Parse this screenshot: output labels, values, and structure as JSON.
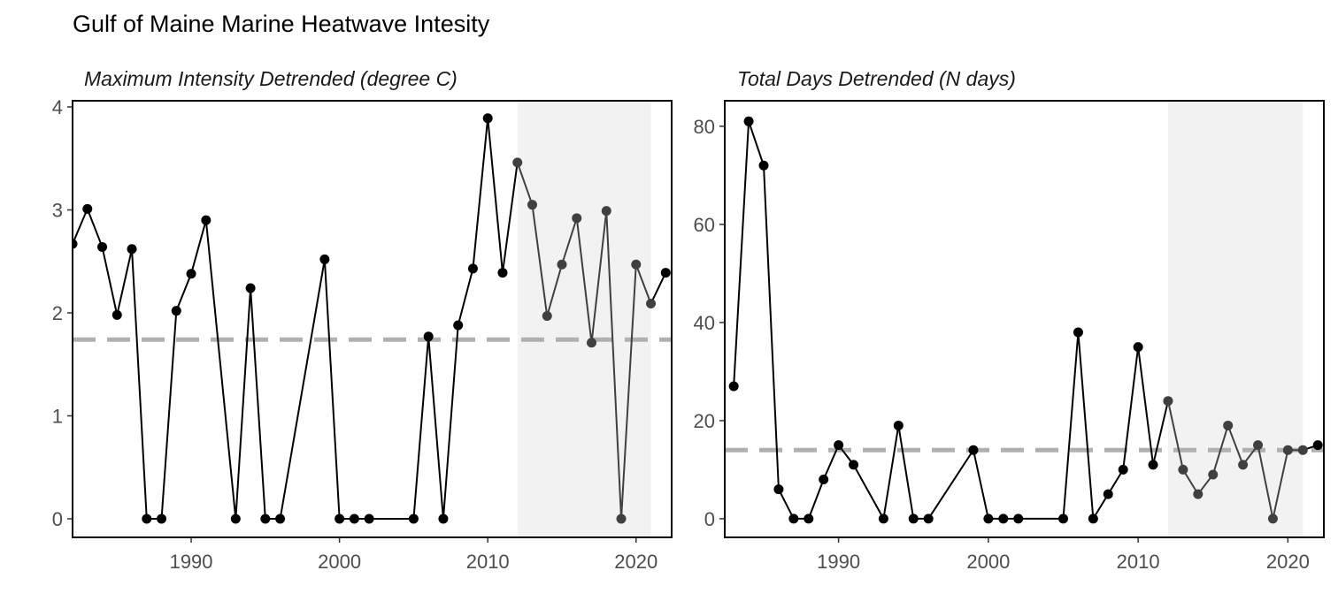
{
  "title": "Gulf of Maine Marine Heatwave Intesity",
  "colors": {
    "points": "#000000",
    "highlight_line": "#404040",
    "reference": "#b0b0b0",
    "shade": "#f2f2f2"
  },
  "chart_data": [
    {
      "type": "line",
      "title": "Maximum Intensity Detrended (degree C)",
      "xlabel": "",
      "ylabel": "",
      "xlim": [
        1982,
        2022.4
      ],
      "ylim": [
        -0.18,
        4.06
      ],
      "xticks": [
        "1990",
        "2000",
        "2010",
        "2020"
      ],
      "yticks": [
        "0",
        "1",
        "2",
        "3",
        "4"
      ],
      "reference_line": 1.74,
      "shaded_period": [
        2012,
        2021
      ],
      "grid": false,
      "series": [
        {
          "x": [
            1982,
            1983,
            1984,
            1985,
            1986,
            1987,
            1988,
            1989,
            1990,
            1991,
            1993,
            1994,
            1995,
            1996,
            1999,
            2000,
            2001,
            2002,
            2005,
            2006,
            2007,
            2008,
            2009,
            2010,
            2011,
            2012,
            2013,
            2014,
            2015,
            2016,
            2017,
            2018,
            2019,
            2020,
            2021,
            2022
          ],
          "y": [
            2.67,
            3.01,
            2.64,
            1.98,
            2.62,
            0,
            0,
            2.02,
            2.38,
            2.9,
            0,
            2.24,
            0,
            0,
            2.52,
            0,
            0,
            0,
            0,
            1.77,
            0,
            1.88,
            2.43,
            3.89,
            2.39,
            3.46,
            3.05,
            1.97,
            2.47,
            2.92,
            1.71,
            2.99,
            0,
            2.47,
            2.09,
            2.39
          ]
        }
      ]
    },
    {
      "type": "line",
      "title": "Total Days Detrended (N days)",
      "xlabel": "",
      "ylabel": "",
      "xlim": [
        1982.4,
        2022.4
      ],
      "ylim": [
        -3.8,
        85.2
      ],
      "xticks": [
        "1990",
        "2000",
        "2010",
        "2020"
      ],
      "yticks": [
        "0",
        "20",
        "40",
        "60",
        "80"
      ],
      "reference_line": 14,
      "shaded_period": [
        2012,
        2021
      ],
      "grid": false,
      "series": [
        {
          "x": [
            1983,
            1984,
            1985,
            1986,
            1987,
            1988,
            1989,
            1990,
            1991,
            1993,
            1994,
            1995,
            1996,
            1999,
            2000,
            2001,
            2002,
            2005,
            2006,
            2007,
            2008,
            2009,
            2010,
            2011,
            2012,
            2013,
            2014,
            2015,
            2016,
            2017,
            2018,
            2019,
            2020,
            2021,
            2022
          ],
          "y": [
            27,
            81,
            72,
            6,
            0,
            0,
            8,
            15,
            11,
            0,
            19,
            0,
            0,
            14,
            0,
            0,
            0,
            0,
            38,
            0,
            5,
            10,
            35,
            11,
            24,
            10,
            5,
            9,
            19,
            11,
            15,
            0,
            14,
            14,
            15
          ]
        }
      ]
    }
  ]
}
